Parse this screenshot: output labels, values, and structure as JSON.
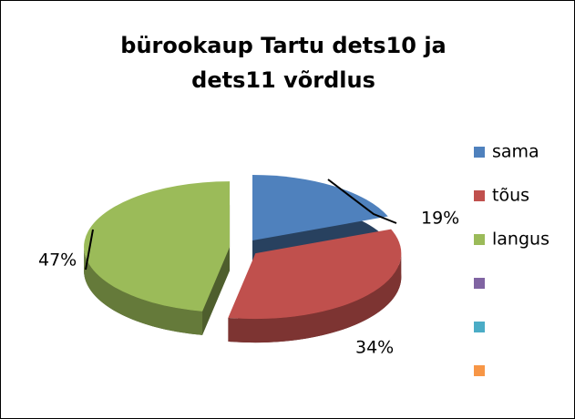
{
  "chart_data": {
    "type": "pie",
    "title": "bürookaup Tartu dets10 ja dets11 võrdlus",
    "categories": [
      "sama",
      "tõus",
      "langus",
      null,
      null,
      null
    ],
    "values": [
      19,
      34,
      47,
      null,
      null,
      null
    ],
    "value_labels": [
      "19%",
      "34%",
      "47%",
      null,
      null,
      null
    ],
    "colors": [
      "#4F81BD",
      "#C0504D",
      "#9BBB59",
      "#8064A2",
      "#4BACC6",
      "#F79646"
    ],
    "legend": "right"
  }
}
